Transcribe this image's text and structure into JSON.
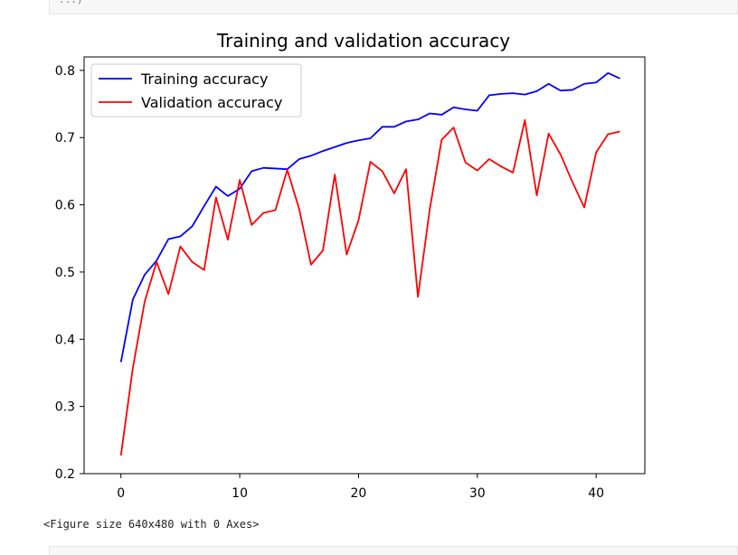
{
  "chart_data": {
    "type": "line",
    "title": "Training and validation accuracy",
    "xlabel": "",
    "ylabel": "",
    "xlim": [
      -3.1,
      44.1
    ],
    "ylim": [
      0.2,
      0.82
    ],
    "xticks": [
      "0",
      "10",
      "20",
      "30",
      "40"
    ],
    "xtick_values": [
      0,
      10,
      20,
      30,
      40
    ],
    "yticks": [
      "0.2",
      "0.3",
      "0.4",
      "0.5",
      "0.6",
      "0.7",
      "0.8"
    ],
    "ytick_values": [
      0.2,
      0.3,
      0.4,
      0.5,
      0.6,
      0.7,
      0.8
    ],
    "grid": false,
    "legend_position": "top-left",
    "x": [
      0,
      1,
      2,
      3,
      4,
      5,
      6,
      7,
      8,
      9,
      10,
      11,
      12,
      13,
      14,
      15,
      16,
      17,
      18,
      19,
      20,
      21,
      22,
      23,
      24,
      25,
      26,
      27,
      28,
      29,
      30,
      31,
      32,
      33,
      34,
      35,
      36,
      37,
      38,
      39,
      40,
      41,
      42
    ],
    "series": [
      {
        "name": "Training accuracy",
        "color": "#0000ff",
        "values": [
          0.366,
          0.459,
          0.496,
          0.517,
          0.549,
          0.553,
          0.568,
          0.598,
          0.627,
          0.613,
          0.624,
          0.65,
          0.655,
          0.654,
          0.653,
          0.668,
          0.673,
          0.68,
          0.686,
          0.692,
          0.696,
          0.699,
          0.716,
          0.716,
          0.724,
          0.727,
          0.736,
          0.734,
          0.745,
          0.742,
          0.74,
          0.763,
          0.765,
          0.766,
          0.764,
          0.769,
          0.78,
          0.77,
          0.771,
          0.78,
          0.782,
          0.796,
          0.788
        ]
      },
      {
        "name": "Validation accuracy",
        "color": "#ff0000",
        "values": [
          0.227,
          0.357,
          0.456,
          0.515,
          0.467,
          0.538,
          0.515,
          0.503,
          0.611,
          0.548,
          0.637,
          0.57,
          0.588,
          0.592,
          0.652,
          0.594,
          0.511,
          0.532,
          0.645,
          0.526,
          0.577,
          0.664,
          0.65,
          0.617,
          0.653,
          0.463,
          0.594,
          0.697,
          0.715,
          0.663,
          0.651,
          0.668,
          0.657,
          0.648,
          0.726,
          0.614,
          0.706,
          0.675,
          0.634,
          0.596,
          0.678,
          0.705,
          0.709
        ]
      }
    ]
  },
  "caption": "<Figure size 640x480 with 0 Axes>",
  "top_cell_text": "...)"
}
